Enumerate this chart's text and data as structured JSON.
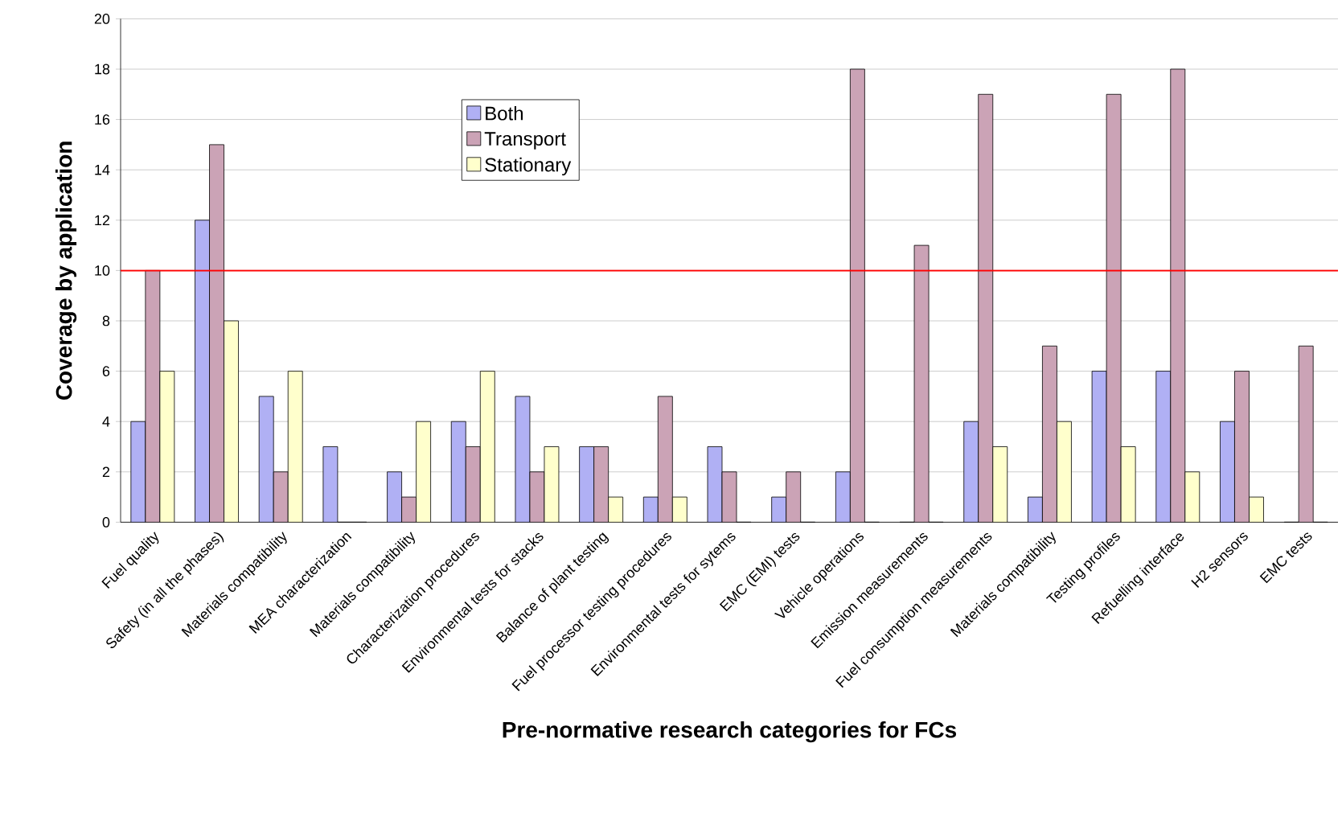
{
  "chart_data": {
    "type": "bar",
    "xlabel": "Pre-normative research categories for FCs",
    "ylabel": "Coverage by application",
    "categories": [
      "Fuel quality",
      "Safety (in all the phases)",
      "Materials compatibility",
      "MEA characterization",
      "Materials compatibility",
      "Characterization procedures",
      "Environmental tests for stacks",
      "Balance of plant testing",
      "Fuel processor testing procedures",
      "Environmental tests for sytems",
      "EMC (EMI) tests",
      "Vehicle operations",
      "Emission measurements",
      "Fuel consumption measurements",
      "Materials compatibility",
      "Testing profiles",
      "Refuelling interface",
      "H2 sensors",
      "EMC tests"
    ],
    "series": [
      {
        "name": "Both",
        "color": "#b0b0f4",
        "values": [
          4,
          12,
          5,
          3,
          2,
          4,
          5,
          3,
          1,
          3,
          1,
          2,
          0,
          4,
          1,
          6,
          6,
          4,
          0
        ]
      },
      {
        "name": "Transport",
        "color": "#cba3b6",
        "values": [
          10,
          15,
          2,
          0,
          1,
          3,
          2,
          3,
          5,
          2,
          2,
          18,
          11,
          17,
          7,
          17,
          18,
          6,
          7
        ]
      },
      {
        "name": "Stationary",
        "color": "#ffffcc",
        "values": [
          6,
          8,
          6,
          0,
          4,
          6,
          3,
          1,
          1,
          0,
          0,
          0,
          0,
          3,
          4,
          3,
          2,
          1,
          0
        ]
      }
    ],
    "ylim": [
      0,
      20
    ],
    "yticks": [
      0,
      2,
      4,
      6,
      8,
      10,
      12,
      14,
      16,
      18,
      20
    ],
    "grid": "y",
    "legend": "top",
    "ref_lines": [
      {
        "axis": "y",
        "value": 10,
        "color": "#ff0000"
      }
    ]
  }
}
